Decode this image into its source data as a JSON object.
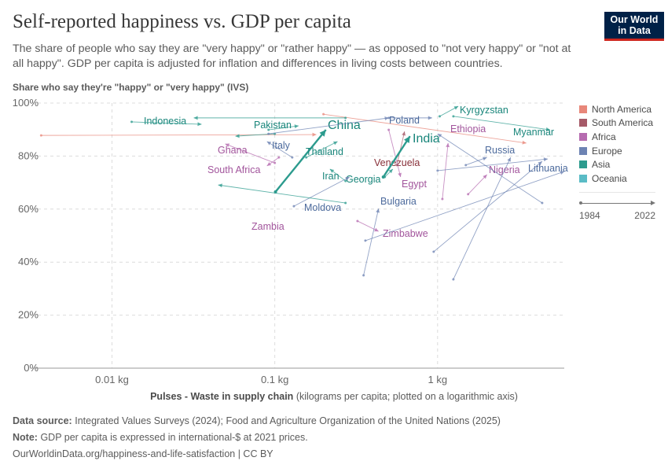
{
  "header": {
    "title": "Self-reported happiness vs. GDP per capita",
    "subtitle": "The share of people who say they are \"very happy\" or \"rather happy\" — as opposed to \"not very happy\" or \"not at all happy\". GDP per capita is adjusted for inflation and differences in living costs between countries.",
    "logo": "Our World in Data"
  },
  "legend": {
    "items": [
      {
        "label": "North America",
        "color": "#E8877A"
      },
      {
        "label": "South America",
        "color": "#A65A68"
      },
      {
        "label": "Africa",
        "color": "#B66BB0"
      },
      {
        "label": "Europe",
        "color": "#6D83B3"
      },
      {
        "label": "Asia",
        "color": "#2C9B8E"
      },
      {
        "label": "Oceania",
        "color": "#5ABCC6"
      }
    ],
    "timeline_start": "1984",
    "timeline_end": "2022"
  },
  "chart_data": {
    "type": "scatter",
    "subtype": "connected-arrows",
    "ylabel": "Share who say they're \"happy\" or \"very happy\" (IVS)",
    "xlabel_bold": "Pulses - Waste in supply chain",
    "xlabel_rest": "(kilograms per capita; plotted on a logarithmic axis)",
    "x_scale": "log",
    "xlim": [
      0.0032,
      6.0
    ],
    "ylim": [
      0,
      100
    ],
    "x_ticks": [
      {
        "value": 0.01,
        "label": "0.01 kg"
      },
      {
        "value": 0.1,
        "label": "0.1 kg"
      },
      {
        "value": 1,
        "label": "1 kg"
      }
    ],
    "y_ticks": [
      {
        "value": 0,
        "label": "0%"
      },
      {
        "value": 20,
        "label": "20%"
      },
      {
        "value": 40,
        "label": "40%"
      },
      {
        "value": 60,
        "label": "60%"
      },
      {
        "value": 80,
        "label": "80%"
      },
      {
        "value": 100,
        "label": "100%"
      }
    ],
    "grid": true,
    "legend_position": "right",
    "series": [
      {
        "region": "North America",
        "start": [
          0.00367,
          87.8
        ],
        "end": [
          0.18,
          88.1
        ]
      },
      {
        "region": "North America",
        "start": [
          0.199,
          95.8
        ],
        "end": [
          3.51,
          84.9
        ]
      },
      {
        "name": "Indonesia",
        "region": "Asia",
        "start": [
          0.272,
          94.4
        ],
        "end": [
          0.0318,
          94.4
        ]
      },
      {
        "region": "Asia",
        "start": [
          0.0132,
          92.9
        ],
        "end": [
          0.0355,
          92.0
        ]
      },
      {
        "name": "Pakistan",
        "region": "Asia",
        "start": [
          0.0915,
          89.9
        ],
        "end": [
          0.14,
          91.4
        ]
      },
      {
        "name": "China",
        "region": "Asia",
        "start": [
          0.101,
          66.5
        ],
        "end": [
          0.206,
          89.9
        ],
        "highlight": true
      },
      {
        "name": "Italy",
        "region": "Europe",
        "start": [
          0.128,
          79.5
        ],
        "end": [
          0.0895,
          85.5
        ]
      },
      {
        "name": "Thailand",
        "region": "Asia",
        "start": [
          0.156,
          79.5
        ],
        "end": [
          0.243,
          85.5
        ]
      },
      {
        "name": "Ghana",
        "region": "Africa",
        "start": [
          0.1,
          77.4
        ],
        "end": [
          0.0496,
          84.6
        ]
      },
      {
        "name": "South Africa",
        "region": "Africa",
        "start": [
          0.106,
          79.5
        ],
        "end": [
          0.0895,
          76.3
        ]
      },
      {
        "name": "Iran",
        "region": "Asia",
        "start": [
          0.272,
          70.6
        ],
        "end": [
          0.218,
          75.1
        ]
      },
      {
        "name": "Georgia",
        "region": "Asia",
        "start": [
          0.474,
          72.1
        ],
        "end": [
          0.531,
          75.1
        ]
      },
      {
        "name": "Moldova",
        "region": "Europe",
        "start": [
          0.131,
          61.1
        ],
        "end": [
          0.288,
          72.1
        ]
      },
      {
        "name": "Venezuela",
        "region": "South America",
        "start": [
          0.561,
          76.6
        ],
        "end": [
          0.627,
          89.3
        ]
      },
      {
        "name": "Egypt",
        "region": "Africa",
        "start": [
          0.501,
          89.9
        ],
        "end": [
          0.593,
          72.1
        ]
      },
      {
        "name": "Poland",
        "region": "Europe",
        "start": [
          0.501,
          94.4
        ],
        "end": [
          0.925,
          94.4
        ]
      },
      {
        "name": "Kyrgyzstan",
        "region": "Asia",
        "start": [
          1.03,
          95.0
        ],
        "end": [
          1.34,
          98.8
        ]
      },
      {
        "name": "Ethiopia",
        "region": "Africa",
        "start": [
          1.07,
          63.8
        ],
        "end": [
          1.16,
          84.9
        ]
      },
      {
        "name": "Myanmar",
        "region": "Asia",
        "start": [
          1.25,
          95.0
        ],
        "end": [
          4.91,
          89.9
        ]
      },
      {
        "name": "India",
        "region": "Asia",
        "start": [
          0.464,
          72.1
        ],
        "end": [
          0.677,
          87.5
        ],
        "highlight": true
      },
      {
        "name": "Russia",
        "region": "Europe",
        "start": [
          1.49,
          76.6
        ],
        "end": [
          2.01,
          79.5
        ]
      },
      {
        "name": "Nigeria",
        "region": "Africa",
        "start": [
          1.54,
          65.6
        ],
        "end": [
          2.01,
          73.0
        ]
      },
      {
        "name": "Lithuania",
        "region": "Europe",
        "start": [
          1.0,
          74.5
        ],
        "end": [
          4.75,
          78.9
        ]
      },
      {
        "name": "Bulgaria",
        "region": "Europe",
        "start": [
          0.351,
          35.0
        ],
        "end": [
          0.434,
          60.2
        ]
      },
      {
        "name": "Zimbabwe",
        "region": "Africa",
        "start": [
          0.322,
          55.5
        ],
        "end": [
          0.434,
          51.6
        ]
      },
      {
        "name": "Zambia",
        "region": "Africa",
        "start": [
          0.0895,
          52.8
        ],
        "end": [
          0.0895,
          52.8
        ]
      },
      {
        "region": "Asia",
        "start": [
          0.272,
          62.3
        ],
        "end": [
          0.0449,
          69.1
        ]
      },
      {
        "region": "Europe",
        "start": [
          0.36,
          48.1
        ],
        "end": [
          6.0,
          74.2
        ]
      },
      {
        "region": "Europe",
        "start": [
          1.25,
          33.5
        ],
        "end": [
          2.81,
          79.5
        ]
      },
      {
        "region": "Europe",
        "start": [
          0.946,
          43.9
        ],
        "end": [
          4.39,
          78.0
        ]
      },
      {
        "region": "Europe",
        "start": [
          4.39,
          62.3
        ],
        "end": [
          1.0,
          88.4
        ]
      },
      {
        "region": "Asia",
        "start": [
          0.1,
          88.4
        ],
        "end": [
          0.0573,
          87.5
        ]
      },
      {
        "region": "Europe",
        "start": [
          0.0915,
          88.4
        ],
        "end": [
          0.501,
          94.4
        ]
      }
    ]
  },
  "footer": {
    "source_label": "Data source:",
    "source": "Integrated Values Surveys (2024); Food and Agriculture Organization of the United Nations (2025)",
    "note_label": "Note:",
    "note": "GDP per capita is expressed in international-$ at 2021 prices.",
    "url": "OurWorldinData.org/happiness-and-life-satisfaction | CC BY"
  }
}
